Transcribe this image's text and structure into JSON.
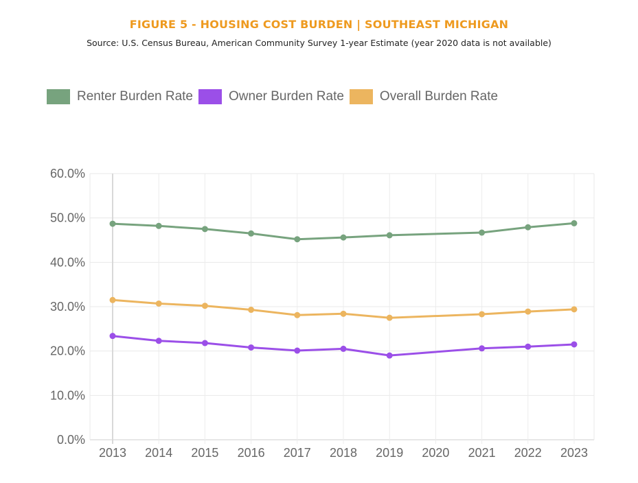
{
  "header": {
    "title": "FIGURE 5 - HOUSING COST BURDEN | SOUTHEAST MICHIGAN",
    "subtitle": "Source: U.S. Census Bureau, American Community Survey 1-year Estimate (year 2020 data is not available)"
  },
  "legend": {
    "position": "top-left",
    "items": [
      {
        "label": "Renter Burden Rate",
        "color": "#77a37e"
      },
      {
        "label": "Owner Burden Rate",
        "color": "#9b4fe8"
      },
      {
        "label": "Overall Burden Rate",
        "color": "#ecb55f"
      }
    ]
  },
  "chart_data": {
    "type": "line",
    "title": "FIGURE 5 - HOUSING COST BURDEN | SOUTHEAST MICHIGAN",
    "subtitle": "Source: U.S. Census Bureau, American Community Survey 1-year Estimate (year 2020 data is not available)",
    "xlabel": "",
    "ylabel": "",
    "categories": [
      "2013",
      "2014",
      "2015",
      "2016",
      "2017",
      "2018",
      "2019",
      "2020",
      "2021",
      "2022",
      "2023"
    ],
    "ylim": [
      0,
      60
    ],
    "yticks": [
      0,
      10,
      20,
      30,
      40,
      50,
      60
    ],
    "ytick_labels": [
      "0.0%",
      "10.0%",
      "20.0%",
      "30.0%",
      "40.0%",
      "50.0%",
      "60.0%"
    ],
    "grid": true,
    "legend_position": "top-left",
    "series": [
      {
        "name": "Renter Burden Rate",
        "color": "#77a37e",
        "values": [
          48.7,
          48.2,
          47.5,
          46.5,
          45.2,
          45.6,
          46.1,
          null,
          46.7,
          47.9,
          48.8
        ]
      },
      {
        "name": "Owner Burden Rate",
        "color": "#9b4fe8",
        "values": [
          23.4,
          22.3,
          21.8,
          20.8,
          20.1,
          20.5,
          19.0,
          null,
          20.6,
          21.0,
          21.5
        ]
      },
      {
        "name": "Overall Burden Rate",
        "color": "#ecb55f",
        "values": [
          31.5,
          30.7,
          30.2,
          29.3,
          28.1,
          28.4,
          27.5,
          null,
          28.3,
          28.9,
          29.4
        ]
      }
    ]
  }
}
